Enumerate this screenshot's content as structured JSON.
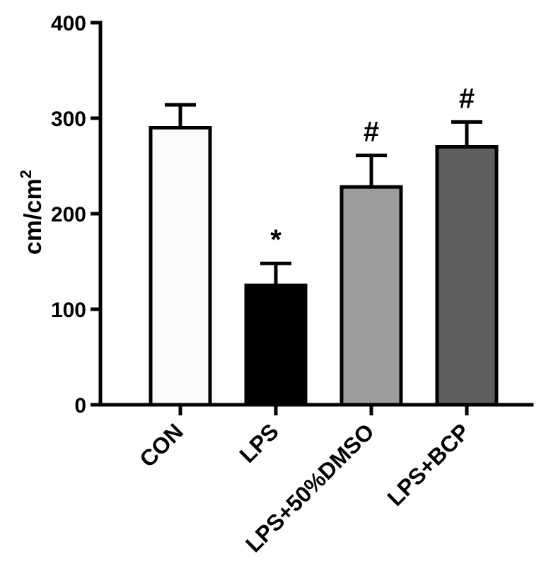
{
  "chart_data": {
    "type": "bar",
    "categories": [
      "CON",
      "LPS",
      "LPS+50%DMSO",
      "LPS+BCP"
    ],
    "values": [
      290,
      125,
      228,
      270
    ],
    "errors": [
      24,
      23,
      33,
      26
    ],
    "significance": [
      "",
      "*",
      "#",
      "#"
    ],
    "bar_colors": [
      "#fbfbfb",
      "#000000",
      "#9d9d9d",
      "#5f5f61"
    ],
    "ylabel_base": "cm/cm",
    "ylabel_superscript": "2",
    "ylim": [
      0,
      400
    ],
    "yticks": [
      "0",
      "100",
      "200",
      "300",
      "400"
    ],
    "grid": false
  }
}
